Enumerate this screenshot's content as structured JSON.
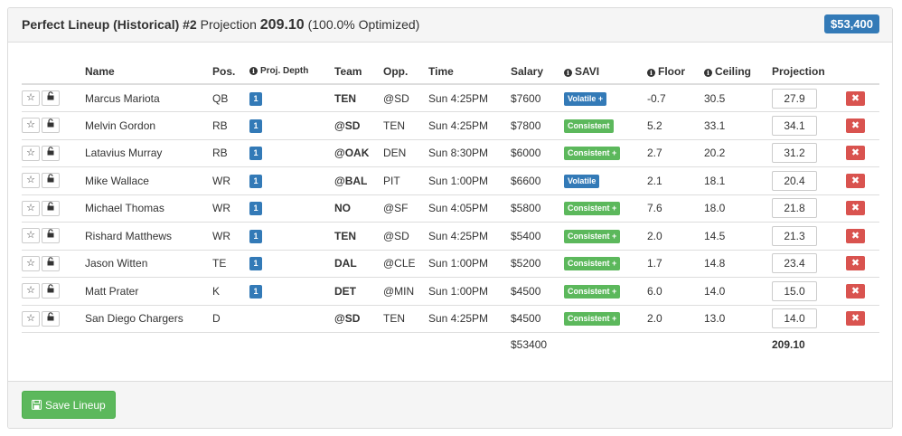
{
  "header": {
    "title": "Perfect Lineup (Historical) #2",
    "projection_label": "Projection",
    "projection_value": "209.10",
    "optimized": "(100.0% Optimized)",
    "salary_badge": "$53,400"
  },
  "columns": {
    "name": "Name",
    "pos": "Pos.",
    "depth": "Proj. Depth",
    "team": "Team",
    "opp": "Opp.",
    "time": "Time",
    "salary": "Salary",
    "savi": "SAVI",
    "floor": "Floor",
    "ceiling": "Ceiling",
    "projection": "Projection"
  },
  "players": [
    {
      "name": "Marcus Mariota",
      "pos": "QB",
      "depth": "1",
      "team": "TEN",
      "opp": "@SD",
      "time": "Sun 4:25PM",
      "salary": "$7600",
      "savi": "Volatile +",
      "savi_type": "volatile",
      "floor": "-0.7",
      "ceiling": "30.5",
      "projection": "27.9"
    },
    {
      "name": "Melvin Gordon",
      "pos": "RB",
      "depth": "1",
      "team": "@SD",
      "opp": "TEN",
      "time": "Sun 4:25PM",
      "salary": "$7800",
      "savi": "Consistent",
      "savi_type": "consistent",
      "floor": "5.2",
      "ceiling": "33.1",
      "projection": "34.1"
    },
    {
      "name": "Latavius Murray",
      "pos": "RB",
      "depth": "1",
      "team": "@OAK",
      "opp": "DEN",
      "time": "Sun 8:30PM",
      "salary": "$6000",
      "savi": "Consistent +",
      "savi_type": "consistent",
      "floor": "2.7",
      "ceiling": "20.2",
      "projection": "31.2"
    },
    {
      "name": "Mike Wallace",
      "pos": "WR",
      "depth": "1",
      "team": "@BAL",
      "opp": "PIT",
      "time": "Sun 1:00PM",
      "salary": "$6600",
      "savi": "Volatile",
      "savi_type": "volatile",
      "floor": "2.1",
      "ceiling": "18.1",
      "projection": "20.4"
    },
    {
      "name": "Michael Thomas",
      "pos": "WR",
      "depth": "1",
      "team": "NO",
      "opp": "@SF",
      "time": "Sun 4:05PM",
      "salary": "$5800",
      "savi": "Consistent +",
      "savi_type": "consistent",
      "floor": "7.6",
      "ceiling": "18.0",
      "projection": "21.8"
    },
    {
      "name": "Rishard Matthews",
      "pos": "WR",
      "depth": "1",
      "team": "TEN",
      "opp": "@SD",
      "time": "Sun 4:25PM",
      "salary": "$5400",
      "savi": "Consistent +",
      "savi_type": "consistent",
      "floor": "2.0",
      "ceiling": "14.5",
      "projection": "21.3"
    },
    {
      "name": "Jason Witten",
      "pos": "TE",
      "depth": "1",
      "team": "DAL",
      "opp": "@CLE",
      "time": "Sun 1:00PM",
      "salary": "$5200",
      "savi": "Consistent +",
      "savi_type": "consistent",
      "floor": "1.7",
      "ceiling": "14.8",
      "projection": "23.4"
    },
    {
      "name": "Matt Prater",
      "pos": "K",
      "depth": "1",
      "team": "DET",
      "opp": "@MIN",
      "time": "Sun 1:00PM",
      "salary": "$4500",
      "savi": "Consistent +",
      "savi_type": "consistent",
      "floor": "6.0",
      "ceiling": "14.0",
      "projection": "15.0"
    },
    {
      "name": "San Diego Chargers",
      "pos": "D",
      "depth": "",
      "team": "@SD",
      "opp": "TEN",
      "time": "Sun 4:25PM",
      "salary": "$4500",
      "savi": "Consistent +",
      "savi_type": "consistent",
      "floor": "2.0",
      "ceiling": "13.0",
      "projection": "14.0"
    }
  ],
  "totals": {
    "salary": "$53400",
    "projection": "209.10"
  },
  "footer": {
    "save_label": "Save Lineup"
  },
  "icons": {
    "star": "star-icon",
    "lock": "lock-icon",
    "info": "info-icon",
    "remove": "remove-icon",
    "save": "save-icon"
  },
  "colors": {
    "primary": "#337ab7",
    "success": "#5cb85c",
    "danger": "#d9534f"
  }
}
